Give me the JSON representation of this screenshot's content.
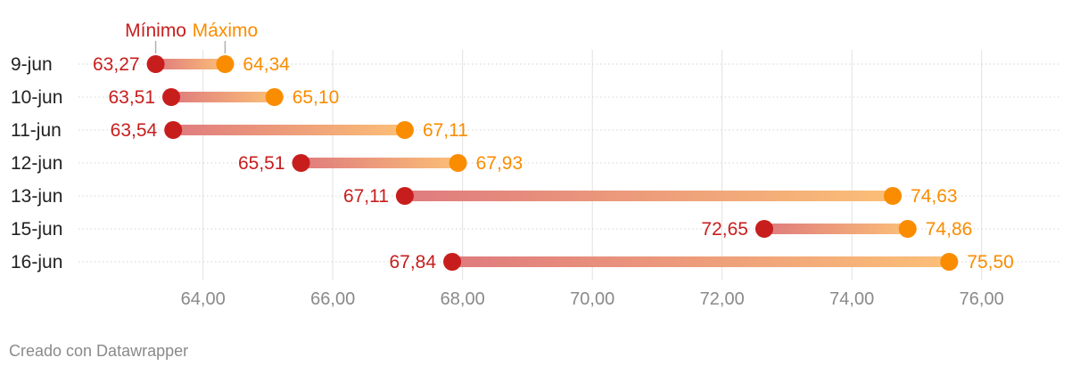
{
  "chart_data": {
    "type": "range_dot",
    "legend": {
      "min_label": "Mínimo",
      "max_label": "Máximo"
    },
    "categories": [
      "9-jun",
      "10-jun",
      "11-jun",
      "12-jun",
      "13-jun",
      "15-jun",
      "16-jun"
    ],
    "min_values": [
      63.27,
      63.51,
      63.54,
      65.51,
      67.11,
      72.65,
      67.84
    ],
    "max_values": [
      64.34,
      65.1,
      67.11,
      67.93,
      74.63,
      74.86,
      75.5
    ],
    "min_labels": [
      "63,27",
      "63,51",
      "63,54",
      "65,51",
      "67,11",
      "72,65",
      "67,84"
    ],
    "max_labels": [
      "64,34",
      "65,10",
      "67,11",
      "67,93",
      "74,63",
      "74,86",
      "75,50"
    ],
    "x_ticks": [
      64,
      66,
      68,
      70,
      72,
      74,
      76
    ],
    "x_tick_labels": [
      "64,00",
      "66,00",
      "68,00",
      "70,00",
      "72,00",
      "74,00",
      "76,00"
    ],
    "xlim": [
      62.08,
      77.2
    ],
    "grid": true,
    "colors": {
      "min": "#c71e1d",
      "max": "#fa8c00",
      "tick": "#8a8a8a",
      "grid": "#e0e0e0",
      "label": "#222222"
    }
  },
  "footer": {
    "credit": "Creado con Datawrapper"
  }
}
